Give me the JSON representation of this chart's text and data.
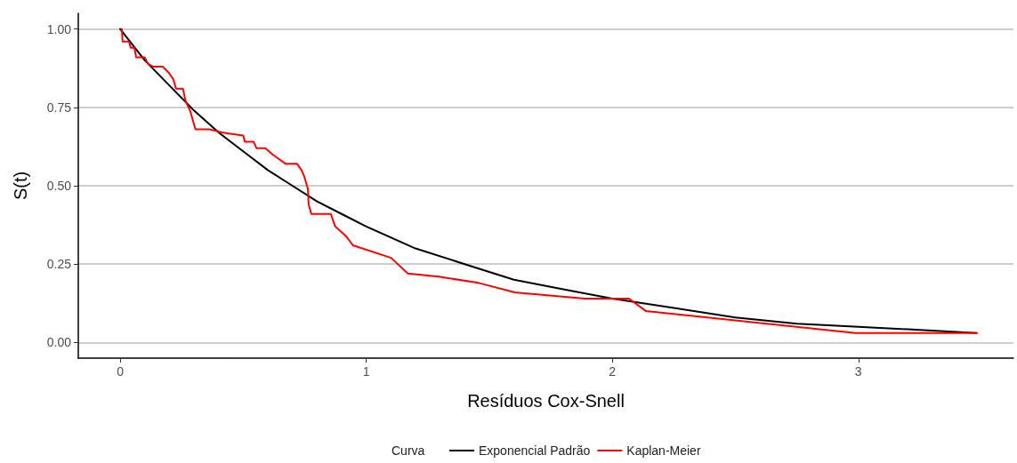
{
  "chart_data": {
    "type": "line",
    "xlabel": "Resíduos Cox-Snell",
    "ylabel": "S(t)",
    "legend_title": "Curva",
    "legend": "bottom",
    "grid": "y",
    "marker": "none",
    "line_style": "solid",
    "xlim": [
      -0.17,
      3.63
    ],
    "ylim": [
      -0.05,
      1.05
    ],
    "xticks": [
      0,
      1,
      2,
      3
    ],
    "yticks": [
      {
        "value": 0,
        "label": "0.00"
      },
      {
        "value": 0.25,
        "label": "0.25"
      },
      {
        "value": 0.5,
        "label": "0.50"
      },
      {
        "value": 0.75,
        "label": "0.75"
      },
      {
        "value": 1,
        "label": "1.00"
      }
    ],
    "series": [
      {
        "name": "Exponencial Padrão",
        "color": "#000000",
        "x": [
          0,
          0.1,
          0.2,
          0.3,
          0.4,
          0.5,
          0.6,
          0.7,
          0.8,
          0.9,
          1.0,
          1.2,
          1.4,
          1.6,
          1.8,
          2.0,
          2.25,
          2.5,
          2.75,
          3.0,
          3.25,
          3.48
        ],
        "values": [
          1,
          0.9,
          0.82,
          0.74,
          0.67,
          0.61,
          0.55,
          0.5,
          0.45,
          0.41,
          0.37,
          0.3,
          0.25,
          0.2,
          0.17,
          0.14,
          0.11,
          0.08,
          0.06,
          0.05,
          0.04,
          0.03
        ]
      },
      {
        "name": "Kaplan-Meier",
        "color": "#ff0000",
        "x": [
          0.007,
          0.01,
          0.036,
          0.043,
          0.058,
          0.065,
          0.1,
          0.112,
          0.133,
          0.173,
          0.198,
          0.216,
          0.227,
          0.255,
          0.266,
          0.284,
          0.306,
          0.363,
          0.414,
          0.5,
          0.507,
          0.543,
          0.554,
          0.59,
          0.619,
          0.673,
          0.719,
          0.737,
          0.748,
          0.763,
          0.766,
          0.777,
          0.856,
          0.874,
          0.917,
          0.946,
          1.101,
          1.169,
          1.295,
          1.457,
          1.604,
          1.888,
          2.068,
          2.137,
          2.989,
          3.482
        ],
        "values": [
          1,
          0.96,
          0.96,
          0.94,
          0.94,
          0.91,
          0.91,
          0.89,
          0.88,
          0.88,
          0.86,
          0.84,
          0.81,
          0.81,
          0.77,
          0.74,
          0.68,
          0.68,
          0.67,
          0.66,
          0.64,
          0.64,
          0.62,
          0.62,
          0.6,
          0.57,
          0.57,
          0.55,
          0.53,
          0.49,
          0.44,
          0.41,
          0.41,
          0.37,
          0.34,
          0.31,
          0.27,
          0.22,
          0.21,
          0.19,
          0.16,
          0.14,
          0.14,
          0.1,
          0.03,
          0.03
        ]
      }
    ]
  }
}
